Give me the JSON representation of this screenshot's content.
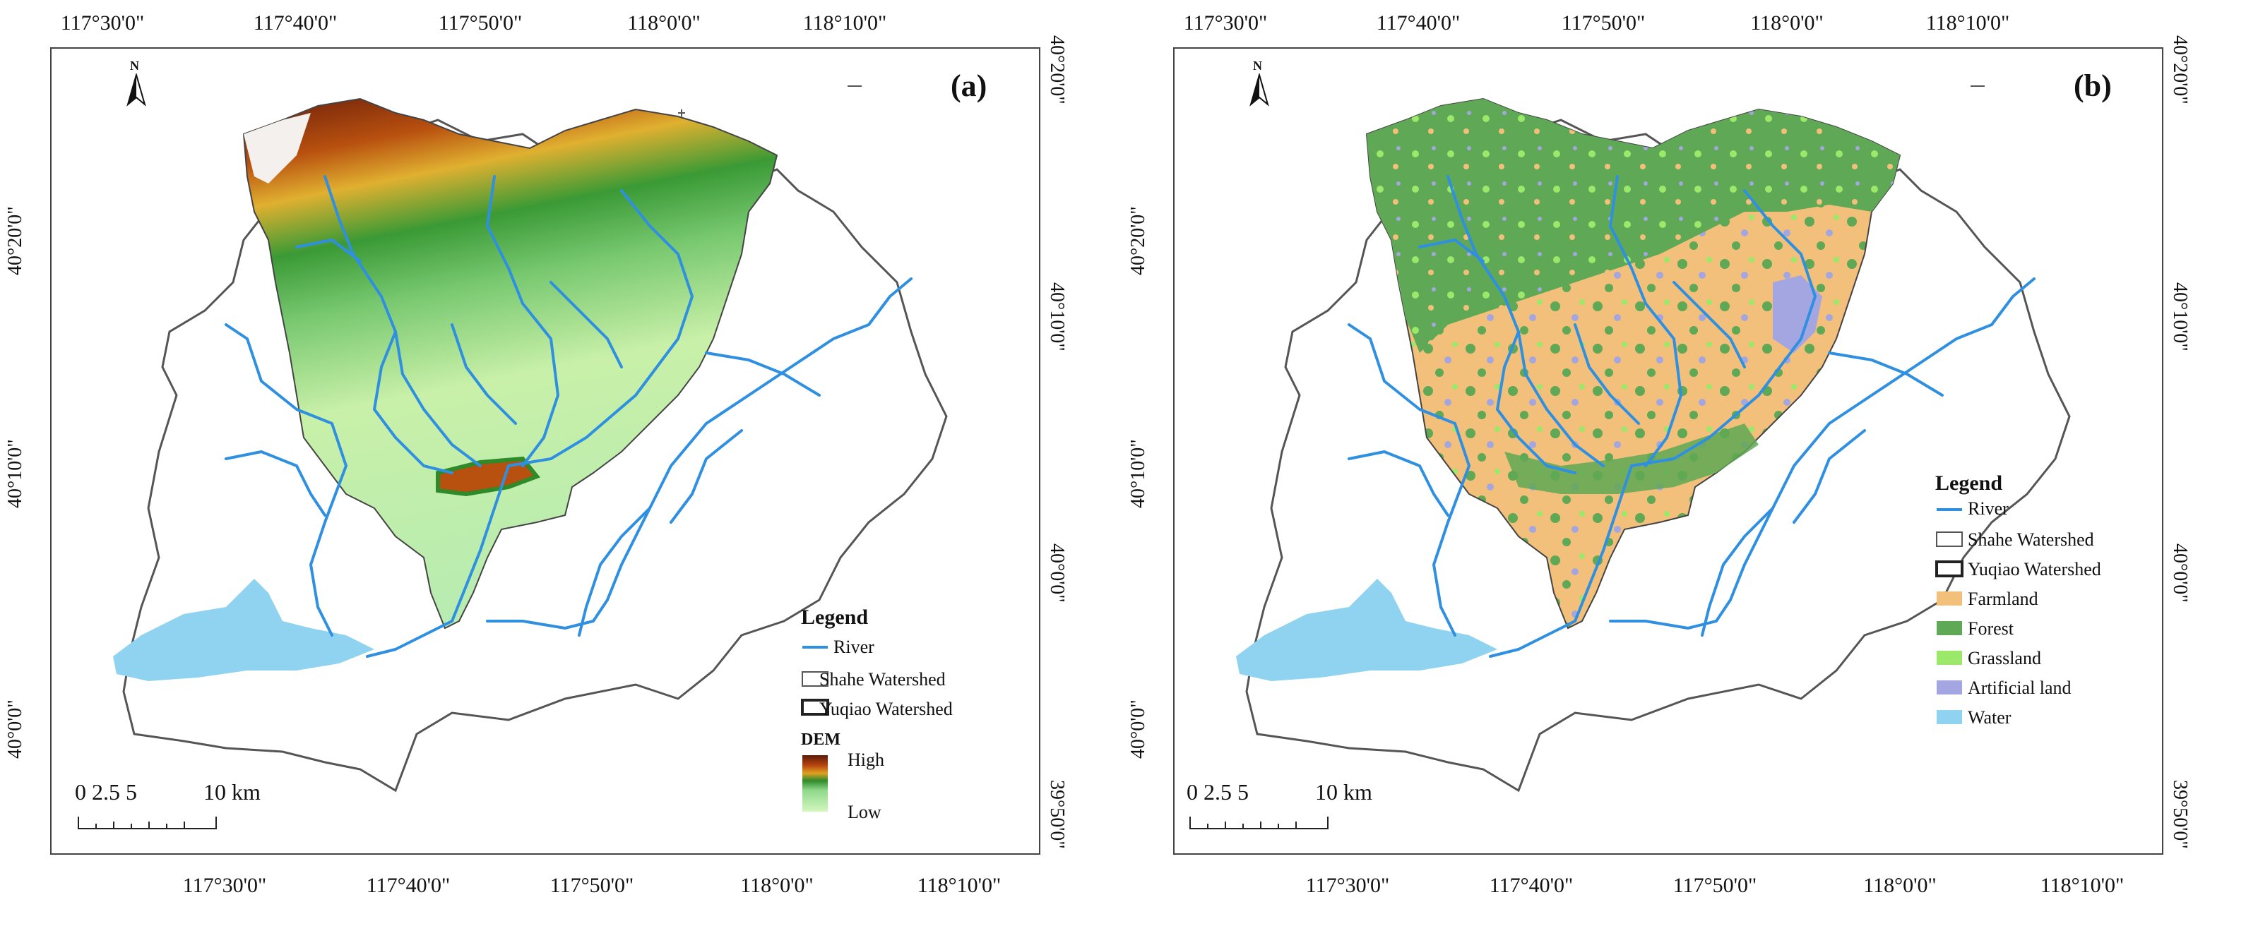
{
  "panel_a": {
    "letter": "(a)",
    "top_ticks": [
      "117°30'0\"",
      "117°40'0\"",
      "117°50'0\"",
      "118°0'0\"",
      "118°10'0\""
    ],
    "bottom_ticks": [
      "117°30'0\"",
      "117°40'0\"",
      "117°50'0\"",
      "118°0'0\"",
      "118°10'0\""
    ],
    "left_ticks": [
      "40°20'0\"",
      "40°10'0\"",
      "40°0'0\""
    ],
    "right_ticks": [
      "40°20'0\"",
      "40°10'0\"",
      "40°0'0\"",
      "39°50'0\""
    ],
    "north": "N",
    "legend": {
      "title": "Legend",
      "items": [
        "River",
        "Shahe Watershed",
        "Yuqiao Watershed"
      ],
      "dem_title": "DEM",
      "dem_high": "High",
      "dem_low": "Low"
    },
    "scale": {
      "labels": "0 2.5 5",
      "end_label": "10 km"
    }
  },
  "panel_b": {
    "letter": "(b)",
    "top_ticks": [
      "117°30'0\"",
      "117°40'0\"",
      "117°50'0\"",
      "118°0'0\"",
      "118°10'0\""
    ],
    "bottom_ticks": [
      "117°30'0\"",
      "117°40'0\"",
      "117°50'0\"",
      "118°0'0\"",
      "118°10'0\""
    ],
    "left_ticks": [
      "40°20'0\"",
      "40°10'0\"",
      "40°0'0\""
    ],
    "right_ticks": [
      "40°20'0\"",
      "40°10'0\"",
      "40°0'0\"",
      "39°50'0\""
    ],
    "north": "N",
    "legend": {
      "title": "Legend",
      "items": [
        "River",
        "Shahe Watershed",
        "Yuqiao Watershed",
        "Farmland",
        "Forest",
        "Grassland",
        "Artificial land",
        "Water"
      ]
    },
    "scale": {
      "labels": "0 2.5 5",
      "end_label": "10 km"
    }
  },
  "colors": {
    "river": "#2f8fe0",
    "water": "#8fd3f0",
    "farmland": "#f2c07a",
    "forest": "#5fa855",
    "grassland": "#9be86a",
    "artificial": "#a3a6e0",
    "dem_high": "#5a1a0a",
    "dem_mid": "#2f8a2a",
    "dem_low": "#c8f5b0"
  }
}
